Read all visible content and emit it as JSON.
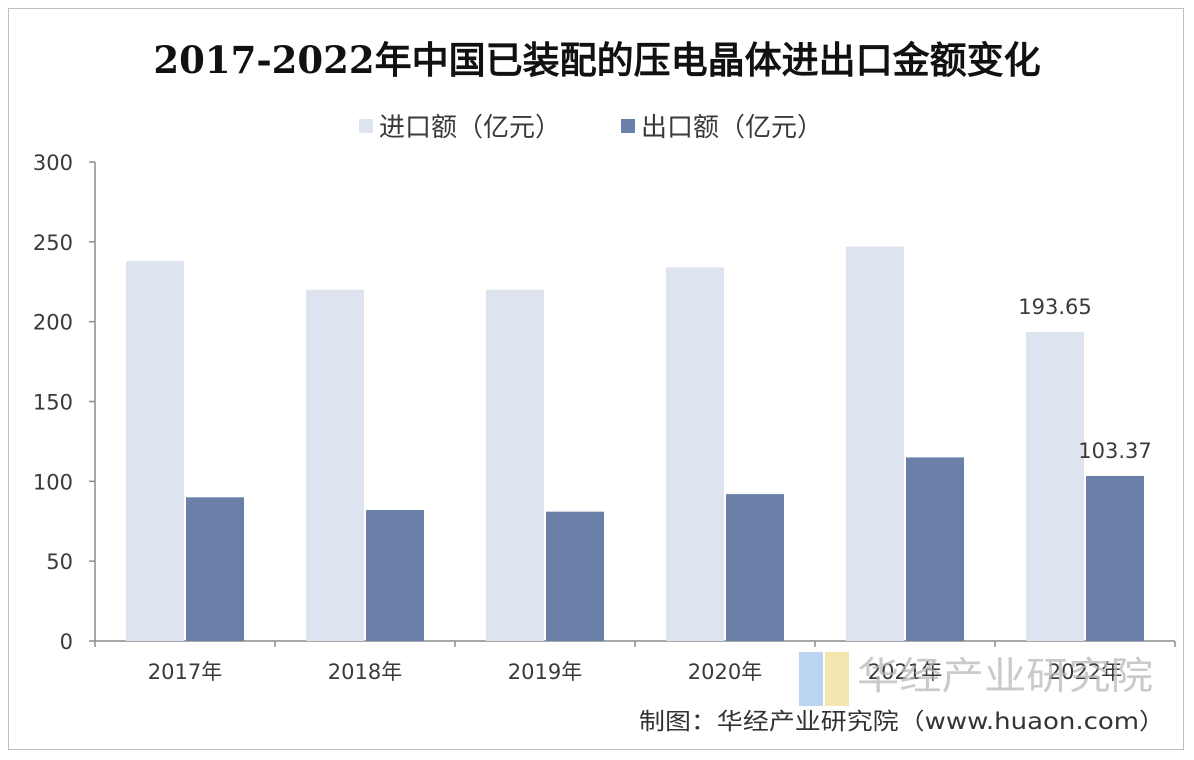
{
  "chart_data": {
    "type": "bar",
    "title": "2017-2022年中国已装配的压电晶体进出口金额变化",
    "categories": [
      "2017年",
      "2018年",
      "2019年",
      "2020年",
      "2021年",
      "2022年"
    ],
    "series": [
      {
        "name": "进口额（亿元）",
        "color": "#dde4ef",
        "values": [
          238,
          220,
          220,
          234,
          247,
          193.65
        ]
      },
      {
        "name": "出口额（亿元）",
        "color": "#6a80a8",
        "values": [
          90,
          82,
          81,
          92,
          115,
          103.37
        ]
      }
    ],
    "data_labels": [
      {
        "series": 0,
        "index": 5,
        "text": "193.65"
      },
      {
        "series": 1,
        "index": 5,
        "text": "103.37"
      }
    ],
    "ylim": [
      0,
      300
    ],
    "yticks": [
      0,
      50,
      100,
      150,
      200,
      250,
      300
    ],
    "xlabel": "",
    "ylabel": "",
    "grid": false,
    "legend_position": "top-center"
  },
  "source": "制图：华经产业研究院（www.huaon.com）",
  "watermark": "华经产业研究院"
}
